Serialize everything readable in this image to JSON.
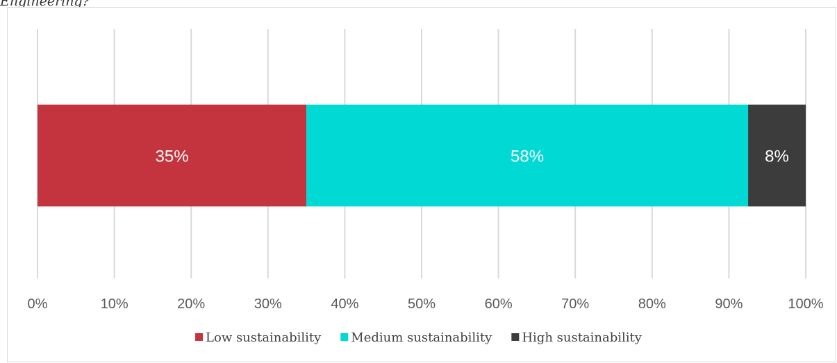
{
  "caption": "Engineering?",
  "chart_data": {
    "type": "bar",
    "orientation": "horizontal",
    "stacked": true,
    "xlim": [
      0,
      100
    ],
    "x_ticks": [
      "0%",
      "10%",
      "20%",
      "30%",
      "40%",
      "50%",
      "60%",
      "70%",
      "80%",
      "90%",
      "100%"
    ],
    "grid": true,
    "legend_position": "bottom",
    "series": [
      {
        "name": "Low sustainability",
        "value": 35,
        "label": "35%",
        "color": "#c4343e"
      },
      {
        "name": "Medium sustainability",
        "value": 57.5,
        "label": "58%",
        "color": "#00d9d4"
      },
      {
        "name": "High sustainability",
        "value": 7.5,
        "label": "8%",
        "color": "#3c3c3c"
      }
    ]
  }
}
